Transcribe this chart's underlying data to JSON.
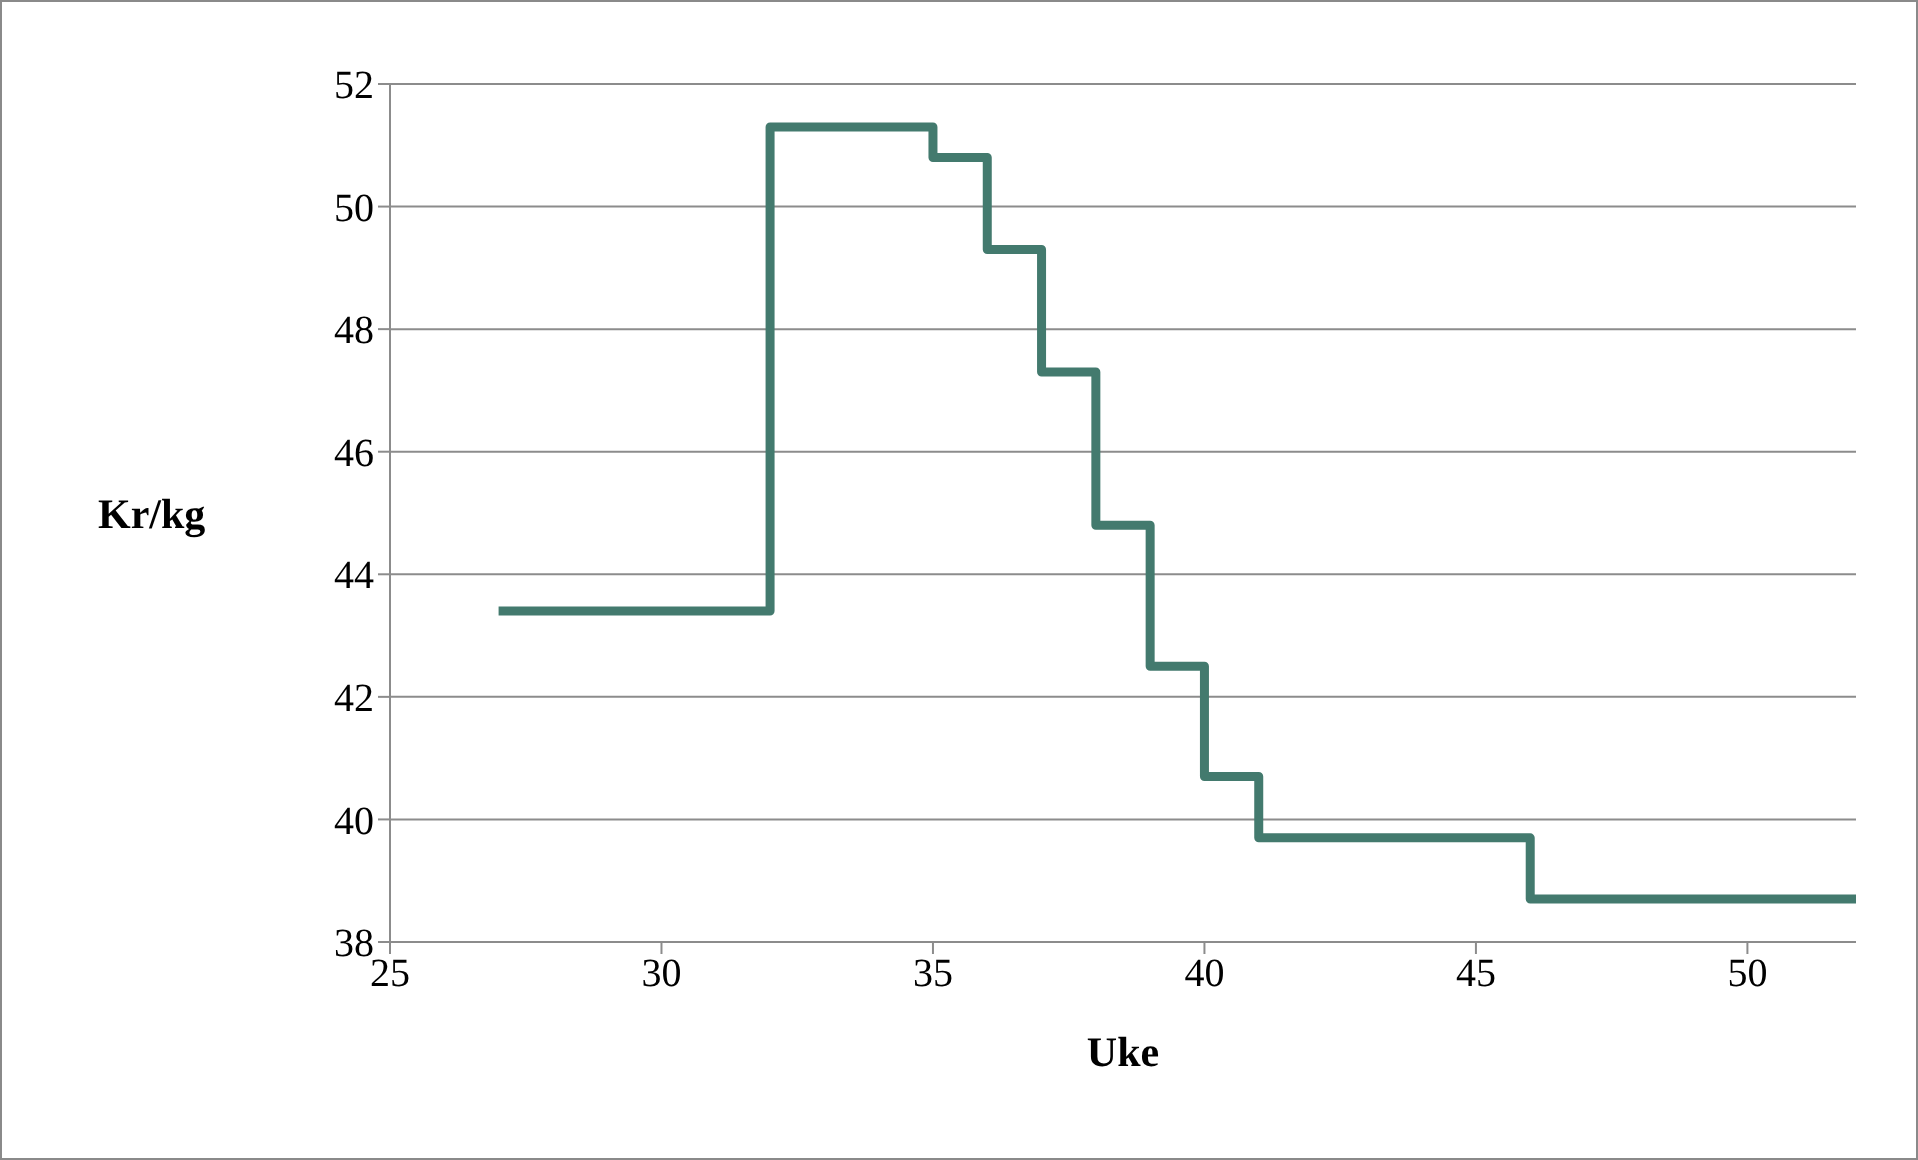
{
  "chart_data": {
    "type": "step",
    "xlabel": "Uke",
    "ylabel": "Kr/kg",
    "x": [
      27,
      32,
      35,
      36,
      37,
      38,
      39,
      40,
      41,
      46,
      52
    ],
    "series": [
      {
        "color": "#437a6e",
        "values": [
          43.4,
          51.3,
          50.8,
          49.3,
          47.3,
          44.8,
          42.5,
          40.7,
          39.7,
          38.7,
          38.7
        ]
      }
    ],
    "xlim": [
      25,
      52
    ],
    "xticks": [
      25,
      30,
      35,
      40,
      45,
      50
    ],
    "ylim": [
      38,
      52
    ],
    "yticks": [
      38,
      40,
      42,
      44,
      46,
      48,
      50,
      52
    ],
    "grid": "y",
    "legend": false,
    "marker": "none",
    "line_style": "solid"
  }
}
